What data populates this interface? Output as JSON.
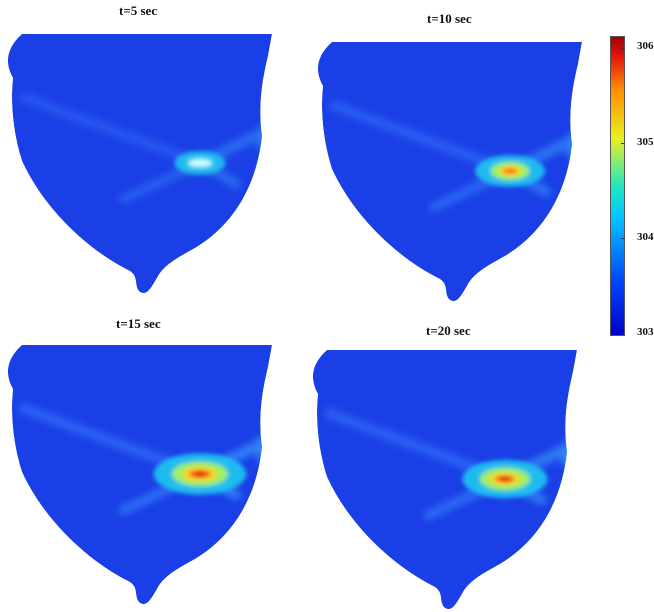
{
  "panels": [
    {
      "title": "t=5 sec",
      "peak": 0.3,
      "icon": "heatmap-panel-5s"
    },
    {
      "title": "t=10 sec",
      "peak": 0.55,
      "icon": "heatmap-panel-10s"
    },
    {
      "title": "t=15 sec",
      "peak": 0.85,
      "icon": "heatmap-panel-15s"
    },
    {
      "title": "t=20 sec",
      "peak": 0.75,
      "icon": "heatmap-panel-20s"
    }
  ],
  "colorbar": {
    "ticks": [
      "306",
      "305",
      "304",
      "303"
    ],
    "min": 303,
    "max": 306.2,
    "colors": [
      "#0000c8",
      "#0046ff",
      "#00c8ff",
      "#20e8c0",
      "#e8f020",
      "#ff9000",
      "#e01010",
      "#a00000"
    ]
  },
  "background_color": "#1a3fe6"
}
